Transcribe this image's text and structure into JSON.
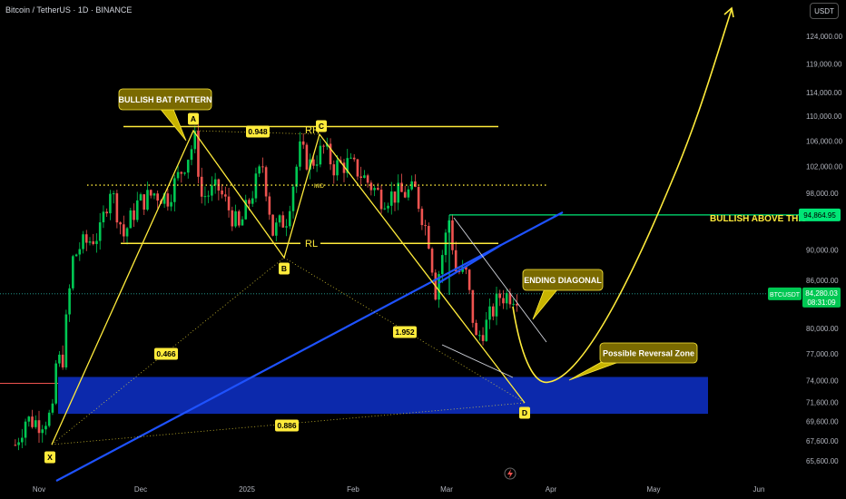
{
  "header": {
    "symbol_title": "Bitcoin / TetherUS · 1D · BINANCE",
    "currency": "USDT"
  },
  "colors": {
    "up": "#26a69a",
    "up_bright": "#00c853",
    "down": "#ef5350",
    "pattern": "#ffeb3b",
    "trendline": "#1e52ff",
    "zone": "#0d2bb5",
    "green_level": "#00e676",
    "background": "#000000"
  },
  "axis": {
    "price_ticks": [
      124000,
      119000,
      114000,
      110000,
      106000,
      102000,
      98000,
      94000,
      90000,
      86000,
      82000,
      80000,
      77000,
      74000,
      71600,
      69600,
      67600,
      65600
    ],
    "price_tick_labels": [
      "124,000.00",
      "119,000.00",
      "114,000.00",
      "110,000.00",
      "106,000.00",
      "102,000.00",
      "98,000.00",
      "",
      "90,000.00",
      "86,000.00",
      "",
      "80,000.00",
      "77,000.00",
      "74,000.00",
      "71,600.00",
      "69,600.00",
      "67,600.00",
      "65,600.00"
    ],
    "time_labels": [
      "Nov",
      "Dec",
      "2025",
      "Feb",
      "Mar",
      "Apr",
      "May",
      "Jun"
    ]
  },
  "badges": {
    "bullish_level": {
      "value": "94,864.95"
    },
    "current_price": {
      "symbol": "BTCUSDT",
      "value": "84,280.03",
      "countdown": "08:31:09"
    }
  },
  "annotations": {
    "bullish_bat": "BULLISH BAT PATTERN",
    "ending_diagonal": "ENDING DIAGONAL",
    "reversal_zone": "Possible Reversal Zone",
    "bullish_above": "BULLISH ABOVE THIS",
    "rh": "RH",
    "rl": "RL",
    "mid": "MID",
    "ratio_a": "0.948",
    "ratio_b": "0.466",
    "ratio_c": "1.952",
    "ratio_d": "0.886",
    "points": [
      "X",
      "A",
      "B",
      "C",
      "D"
    ]
  },
  "chart_data": {
    "type": "candlestick",
    "title": "Bitcoin / TetherUS · 1D · BINANCE",
    "ylim": [
      63000,
      129000
    ],
    "x_range": [
      "2024-10-25",
      "2025-06-03"
    ],
    "log_scale": true,
    "grid": false,
    "candles_approx_close": [
      [
        "2024-10-25",
        67200
      ],
      [
        "2024-10-28",
        69800
      ],
      [
        "2024-11-01",
        69500
      ],
      [
        "2024-11-05",
        70300
      ],
      [
        "2024-11-06",
        75800
      ],
      [
        "2024-11-08",
        76600
      ],
      [
        "2024-11-11",
        88700
      ],
      [
        "2024-11-13",
        90400
      ],
      [
        "2024-11-15",
        91000
      ],
      [
        "2024-11-19",
        92300
      ],
      [
        "2024-11-22",
        98900
      ],
      [
        "2024-11-26",
        92000
      ],
      [
        "2024-11-30",
        96400
      ],
      [
        "2024-12-05",
        98000
      ],
      [
        "2024-12-09",
        97400
      ],
      [
        "2024-12-13",
        101400
      ],
      [
        "2024-12-17",
        106100
      ],
      [
        "2024-12-19",
        97500
      ],
      [
        "2024-12-24",
        98600
      ],
      [
        "2024-12-30",
        92800
      ],
      [
        "2025-01-06",
        102200
      ],
      [
        "2025-01-09",
        92500
      ],
      [
        "2025-01-13",
        94500
      ],
      [
        "2025-01-17",
        104500
      ],
      [
        "2025-01-20",
        102300
      ],
      [
        "2025-01-24",
        104800
      ],
      [
        "2025-01-27",
        102000
      ],
      [
        "2025-01-31",
        102400
      ],
      [
        "2025-02-03",
        101400
      ],
      [
        "2025-02-10",
        97400
      ],
      [
        "2025-02-20",
        98300
      ],
      [
        "2025-02-24",
        91500
      ],
      [
        "2025-02-26",
        84700
      ],
      [
        "2025-03-02",
        94200
      ],
      [
        "2025-03-04",
        87300
      ],
      [
        "2025-03-07",
        86700
      ],
      [
        "2025-03-10",
        78600
      ],
      [
        "2025-03-13",
        80500
      ],
      [
        "2025-03-17",
        84000
      ],
      [
        "2025-03-22",
        84280
      ]
    ],
    "current_price": 84280.03,
    "horizontal_levels": [
      {
        "label": "RH",
        "price": 108300
      },
      {
        "label": "MID",
        "price": 99200
      },
      {
        "label": "RL",
        "price": 90900
      },
      {
        "label": "BULLISH ABOVE THIS",
        "price": 94864.95
      }
    ],
    "zones": [
      {
        "label": "",
        "price_low": 70400,
        "price_high": 74400
      }
    ],
    "harmonic_pattern": {
      "name": "BULLISH BAT PATTERN",
      "points": [
        {
          "label": "X",
          "date": "2024-11-05",
          "price": 67100
        },
        {
          "label": "A",
          "date": "2024-12-17",
          "price": 108300
        },
        {
          "label": "B",
          "date": "2025-01-13",
          "price": 89300
        },
        {
          "label": "C",
          "date": "2025-01-21",
          "price": 107500
        },
        {
          "label": "D",
          "date": "2025-03-25",
          "price": 71500
        }
      ],
      "ratios": [
        "0.948",
        "0.466",
        "1.952",
        "0.886"
      ]
    },
    "projection": "curve down to ~73,500 near 2025-04-01 then up beyond 124,000"
  }
}
